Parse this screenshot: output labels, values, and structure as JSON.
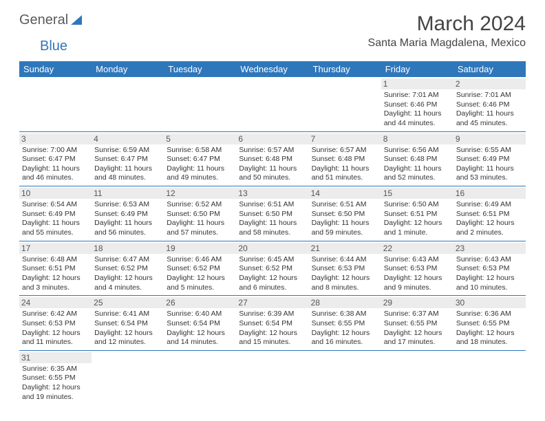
{
  "logo": {
    "part1": "General",
    "part2": "Blue"
  },
  "title": "March 2024",
  "location": "Santa Maria Magdalena, Mexico",
  "colors": {
    "header_bg": "#2f77bb",
    "header_text": "#ffffff",
    "day_band": "#ececec",
    "rule": "#2f77bb"
  },
  "weekdays": [
    "Sunday",
    "Monday",
    "Tuesday",
    "Wednesday",
    "Thursday",
    "Friday",
    "Saturday"
  ],
  "days": {
    "1": {
      "sunrise": "7:01 AM",
      "sunset": "6:46 PM",
      "daylight": "11 hours and 44 minutes."
    },
    "2": {
      "sunrise": "7:01 AM",
      "sunset": "6:46 PM",
      "daylight": "11 hours and 45 minutes."
    },
    "3": {
      "sunrise": "7:00 AM",
      "sunset": "6:47 PM",
      "daylight": "11 hours and 46 minutes."
    },
    "4": {
      "sunrise": "6:59 AM",
      "sunset": "6:47 PM",
      "daylight": "11 hours and 48 minutes."
    },
    "5": {
      "sunrise": "6:58 AM",
      "sunset": "6:47 PM",
      "daylight": "11 hours and 49 minutes."
    },
    "6": {
      "sunrise": "6:57 AM",
      "sunset": "6:48 PM",
      "daylight": "11 hours and 50 minutes."
    },
    "7": {
      "sunrise": "6:57 AM",
      "sunset": "6:48 PM",
      "daylight": "11 hours and 51 minutes."
    },
    "8": {
      "sunrise": "6:56 AM",
      "sunset": "6:48 PM",
      "daylight": "11 hours and 52 minutes."
    },
    "9": {
      "sunrise": "6:55 AM",
      "sunset": "6:49 PM",
      "daylight": "11 hours and 53 minutes."
    },
    "10": {
      "sunrise": "6:54 AM",
      "sunset": "6:49 PM",
      "daylight": "11 hours and 55 minutes."
    },
    "11": {
      "sunrise": "6:53 AM",
      "sunset": "6:49 PM",
      "daylight": "11 hours and 56 minutes."
    },
    "12": {
      "sunrise": "6:52 AM",
      "sunset": "6:50 PM",
      "daylight": "11 hours and 57 minutes."
    },
    "13": {
      "sunrise": "6:51 AM",
      "sunset": "6:50 PM",
      "daylight": "11 hours and 58 minutes."
    },
    "14": {
      "sunrise": "6:51 AM",
      "sunset": "6:50 PM",
      "daylight": "11 hours and 59 minutes."
    },
    "15": {
      "sunrise": "6:50 AM",
      "sunset": "6:51 PM",
      "daylight": "12 hours and 1 minute."
    },
    "16": {
      "sunrise": "6:49 AM",
      "sunset": "6:51 PM",
      "daylight": "12 hours and 2 minutes."
    },
    "17": {
      "sunrise": "6:48 AM",
      "sunset": "6:51 PM",
      "daylight": "12 hours and 3 minutes."
    },
    "18": {
      "sunrise": "6:47 AM",
      "sunset": "6:52 PM",
      "daylight": "12 hours and 4 minutes."
    },
    "19": {
      "sunrise": "6:46 AM",
      "sunset": "6:52 PM",
      "daylight": "12 hours and 5 minutes."
    },
    "20": {
      "sunrise": "6:45 AM",
      "sunset": "6:52 PM",
      "daylight": "12 hours and 6 minutes."
    },
    "21": {
      "sunrise": "6:44 AM",
      "sunset": "6:53 PM",
      "daylight": "12 hours and 8 minutes."
    },
    "22": {
      "sunrise": "6:43 AM",
      "sunset": "6:53 PM",
      "daylight": "12 hours and 9 minutes."
    },
    "23": {
      "sunrise": "6:43 AM",
      "sunset": "6:53 PM",
      "daylight": "12 hours and 10 minutes."
    },
    "24": {
      "sunrise": "6:42 AM",
      "sunset": "6:53 PM",
      "daylight": "12 hours and 11 minutes."
    },
    "25": {
      "sunrise": "6:41 AM",
      "sunset": "6:54 PM",
      "daylight": "12 hours and 12 minutes."
    },
    "26": {
      "sunrise": "6:40 AM",
      "sunset": "6:54 PM",
      "daylight": "12 hours and 14 minutes."
    },
    "27": {
      "sunrise": "6:39 AM",
      "sunset": "6:54 PM",
      "daylight": "12 hours and 15 minutes."
    },
    "28": {
      "sunrise": "6:38 AM",
      "sunset": "6:55 PM",
      "daylight": "12 hours and 16 minutes."
    },
    "29": {
      "sunrise": "6:37 AM",
      "sunset": "6:55 PM",
      "daylight": "12 hours and 17 minutes."
    },
    "30": {
      "sunrise": "6:36 AM",
      "sunset": "6:55 PM",
      "daylight": "12 hours and 18 minutes."
    },
    "31": {
      "sunrise": "6:35 AM",
      "sunset": "6:55 PM",
      "daylight": "12 hours and 19 minutes."
    }
  },
  "labels": {
    "sunrise": "Sunrise:",
    "sunset": "Sunset:",
    "daylight": "Daylight:"
  },
  "layout": {
    "first_weekday_index": 5,
    "num_days": 31
  }
}
